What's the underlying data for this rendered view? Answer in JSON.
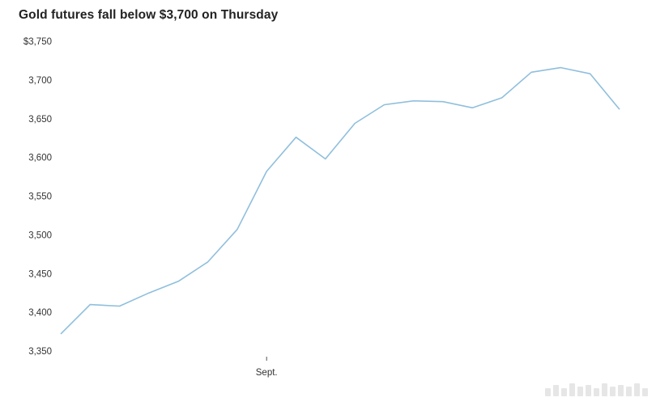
{
  "chart_data": {
    "type": "line",
    "title": "Gold futures fall below $3,700 on Thursday",
    "xlabel": "",
    "ylabel": "",
    "y_tick_labels": [
      "3,350",
      "3,400",
      "3,450",
      "3,500",
      "3,550",
      "3,600",
      "3,650",
      "3,700",
      "$3,750"
    ],
    "y_tick_values": [
      3350,
      3400,
      3450,
      3500,
      3550,
      3600,
      3650,
      3700,
      3750
    ],
    "ylim": [
      3350,
      3750
    ],
    "x_ticks": [
      {
        "index": 7,
        "label": "Sept."
      }
    ],
    "grid": false,
    "series": [
      {
        "values": [
          3372,
          3410,
          3408,
          3425,
          3440,
          3465,
          3507,
          3582,
          3626,
          3598,
          3644,
          3668,
          3673,
          3672,
          3664,
          3677,
          3710,
          3716,
          3708,
          3662
        ]
      }
    ],
    "line_color": "#8fbfdd"
  }
}
